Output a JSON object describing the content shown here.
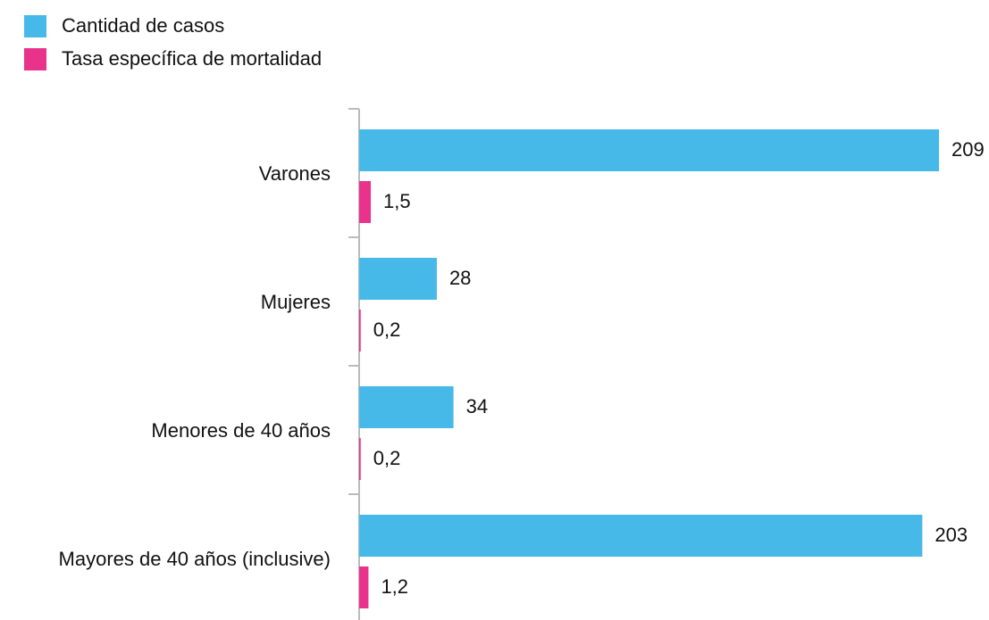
{
  "chart_data": {
    "type": "bar",
    "orientation": "horizontal",
    "categories": [
      "Varones",
      "Mujeres",
      "Menores de 40 años",
      "Mayores de 40 años (inclusive)"
    ],
    "series": [
      {
        "name": "Cantidad de casos",
        "color": "#47b9e8",
        "values": [
          209,
          28,
          34,
          203
        ]
      },
      {
        "name": "Tasa específica de mortalidad",
        "color": "#e9338b",
        "values": [
          1.5,
          0.2,
          0.2,
          1.2
        ],
        "value_labels": [
          "1,5",
          "0,2",
          "0,2",
          "1,2"
        ]
      }
    ]
  }
}
